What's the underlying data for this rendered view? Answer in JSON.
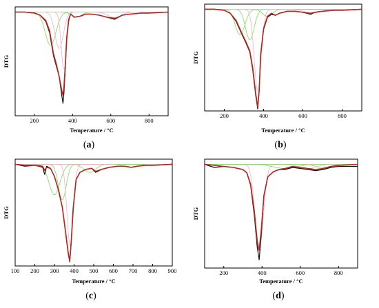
{
  "chart_data": [
    {
      "type": "line",
      "caption": "(a)",
      "xlabel": "Temperature / °C",
      "ylabel": "DTG",
      "xlim": [
        100,
        900
      ],
      "xticks": [
        200,
        400,
        600,
        800
      ],
      "ylim": [
        -1.0,
        0.05
      ],
      "grid": false,
      "series": [
        {
          "role": "experimental",
          "color": "#111111",
          "x": [
            100,
            150,
            200,
            230,
            260,
            280,
            300,
            315,
            330,
            345,
            350,
            355,
            362,
            370,
            380,
            390,
            410,
            440,
            470,
            500,
            540,
            580,
            620,
            640,
            660,
            700,
            760,
            800,
            900
          ],
          "y": [
            0,
            0,
            -0.01,
            -0.03,
            -0.09,
            -0.2,
            -0.42,
            -0.52,
            -0.62,
            -0.82,
            -0.88,
            -0.78,
            -0.55,
            -0.25,
            -0.08,
            -0.02,
            -0.05,
            -0.04,
            -0.02,
            -0.02,
            -0.03,
            -0.05,
            -0.07,
            -0.05,
            -0.03,
            -0.02,
            -0.01,
            -0.01,
            0
          ]
        },
        {
          "role": "fitted",
          "color": "#b5271f",
          "x": [
            100,
            150,
            200,
            230,
            260,
            280,
            300,
            315,
            330,
            345,
            350,
            355,
            362,
            370,
            380,
            390,
            410,
            440,
            470,
            500,
            540,
            580,
            620,
            640,
            660,
            700,
            760,
            800,
            900
          ],
          "y": [
            0,
            0,
            -0.01,
            -0.03,
            -0.08,
            -0.18,
            -0.4,
            -0.5,
            -0.62,
            -0.77,
            -0.8,
            -0.72,
            -0.52,
            -0.24,
            -0.07,
            -0.02,
            -0.05,
            -0.04,
            -0.02,
            -0.02,
            -0.03,
            -0.05,
            -0.06,
            -0.05,
            -0.03,
            -0.02,
            -0.01,
            -0.01,
            0
          ]
        }
      ],
      "components": [
        {
          "color": "#7fd95f",
          "center": 285,
          "width": 28,
          "amp": -0.32
        },
        {
          "color": "#f2b3c4",
          "center": 330,
          "width": 22,
          "amp": -0.35
        },
        {
          "color": "#f2b3c4",
          "center": 355,
          "width": 14,
          "amp": -0.55
        },
        {
          "color": "#7fd95f",
          "center": 420,
          "width": 25,
          "amp": -0.05
        },
        {
          "color": "#f2b3c4",
          "center": 620,
          "width": 35,
          "amp": -0.05
        }
      ]
    },
    {
      "type": "line",
      "caption": "(b)",
      "xlabel": "Temperature / °C",
      "ylabel": "DTG",
      "xlim": [
        100,
        900
      ],
      "xticks": [
        200,
        400,
        600,
        800
      ],
      "ylim": [
        -1.0,
        0.05
      ],
      "grid": false,
      "series": [
        {
          "role": "experimental",
          "color": "#111111",
          "x": [
            100,
            150,
            200,
            230,
            260,
            290,
            310,
            330,
            345,
            360,
            370,
            378,
            385,
            400,
            420,
            440,
            460,
            480,
            520,
            560,
            600,
            640,
            660,
            700,
            760,
            800,
            900
          ],
          "y": [
            0,
            0,
            -0.01,
            -0.04,
            -0.12,
            -0.25,
            -0.33,
            -0.42,
            -0.6,
            -0.85,
            -0.98,
            -0.8,
            -0.45,
            -0.2,
            -0.08,
            -0.05,
            -0.06,
            -0.04,
            -0.02,
            -0.02,
            -0.03,
            -0.05,
            -0.03,
            -0.02,
            -0.01,
            -0.01,
            0
          ]
        },
        {
          "role": "fitted",
          "color": "#b5271f",
          "x": [
            100,
            150,
            200,
            230,
            260,
            290,
            310,
            330,
            345,
            360,
            370,
            378,
            385,
            400,
            420,
            440,
            460,
            480,
            520,
            560,
            600,
            640,
            660,
            700,
            760,
            800,
            900
          ],
          "y": [
            0,
            0,
            -0.01,
            -0.04,
            -0.11,
            -0.24,
            -0.32,
            -0.41,
            -0.58,
            -0.83,
            -0.96,
            -0.79,
            -0.45,
            -0.19,
            -0.07,
            -0.04,
            -0.06,
            -0.04,
            -0.02,
            -0.02,
            -0.03,
            -0.04,
            -0.03,
            -0.02,
            -0.01,
            -0.01,
            0
          ]
        }
      ],
      "components": [
        {
          "color": "#7fd95f",
          "center": 280,
          "width": 25,
          "amp": -0.25
        },
        {
          "color": "#7fd95f",
          "center": 330,
          "width": 22,
          "amp": -0.3
        },
        {
          "color": "#f2b3c4",
          "center": 370,
          "width": 18,
          "amp": -0.8
        },
        {
          "color": "#7fd95f",
          "center": 420,
          "width": 25,
          "amp": -0.07
        },
        {
          "color": "#f2b3c4",
          "center": 650,
          "width": 40,
          "amp": -0.04
        }
      ]
    },
    {
      "type": "line",
      "caption": "(c)",
      "xlabel": "Temperature / °C",
      "ylabel": "DTG",
      "xlim": [
        100,
        900
      ],
      "xticks": [
        100,
        200,
        300,
        400,
        500,
        600,
        700,
        800,
        900
      ],
      "ylim": [
        -1.0,
        0.05
      ],
      "grid": false,
      "series": [
        {
          "role": "experimental",
          "color": "#111111",
          "x": [
            100,
            150,
            200,
            240,
            250,
            260,
            280,
            300,
            320,
            340,
            355,
            370,
            378,
            385,
            395,
            410,
            430,
            460,
            490,
            510,
            540,
            580,
            620,
            660,
            690,
            720,
            760,
            800,
            900
          ],
          "y": [
            0,
            -0.02,
            -0.01,
            -0.03,
            -0.1,
            -0.02,
            -0.04,
            -0.12,
            -0.25,
            -0.42,
            -0.65,
            -0.88,
            -0.96,
            -0.78,
            -0.45,
            -0.15,
            -0.08,
            -0.05,
            -0.04,
            -0.08,
            -0.05,
            -0.03,
            -0.02,
            -0.02,
            -0.03,
            -0.02,
            -0.01,
            -0.01,
            0
          ]
        },
        {
          "role": "fitted",
          "color": "#b5271f",
          "x": [
            100,
            150,
            200,
            240,
            250,
            260,
            280,
            300,
            320,
            340,
            355,
            370,
            378,
            385,
            395,
            410,
            430,
            460,
            490,
            510,
            540,
            580,
            620,
            660,
            690,
            720,
            760,
            800,
            900
          ],
          "y": [
            0,
            -0.01,
            -0.01,
            -0.02,
            -0.06,
            -0.03,
            -0.04,
            -0.12,
            -0.25,
            -0.42,
            -0.64,
            -0.87,
            -0.95,
            -0.78,
            -0.44,
            -0.15,
            -0.08,
            -0.05,
            -0.04,
            -0.07,
            -0.05,
            -0.03,
            -0.02,
            -0.02,
            -0.03,
            -0.02,
            -0.01,
            -0.01,
            0
          ]
        }
      ],
      "components": [
        {
          "color": "#7fd95f",
          "center": 300,
          "width": 28,
          "amp": -0.3
        },
        {
          "color": "#7fd95f",
          "center": 340,
          "width": 20,
          "amp": -0.35
        },
        {
          "color": "#f2b3c4",
          "center": 380,
          "width": 16,
          "amp": -0.8
        },
        {
          "color": "#7fd95f",
          "center": 480,
          "width": 30,
          "amp": -0.08
        },
        {
          "color": "#f2b3c4",
          "center": 690,
          "width": 35,
          "amp": -0.03
        }
      ]
    },
    {
      "type": "line",
      "caption": "(d)",
      "xlabel": "Temperature / °C",
      "ylabel": "DTG",
      "xlim": [
        100,
        900
      ],
      "xticks": [
        200,
        400,
        600,
        800
      ],
      "ylim": [
        -1.0,
        0.05
      ],
      "grid": false,
      "series": [
        {
          "role": "experimental",
          "color": "#111111",
          "x": [
            100,
            150,
            200,
            250,
            300,
            320,
            340,
            360,
            375,
            385,
            395,
            410,
            430,
            460,
            490,
            520,
            560,
            600,
            640,
            680,
            720,
            760,
            800,
            900
          ],
          "y": [
            0,
            -0.03,
            -0.02,
            -0.03,
            -0.05,
            -0.08,
            -0.2,
            -0.5,
            -0.8,
            -0.92,
            -0.7,
            -0.3,
            -0.12,
            -0.07,
            -0.05,
            -0.05,
            -0.03,
            -0.04,
            -0.05,
            -0.06,
            -0.05,
            -0.03,
            -0.02,
            -0.02
          ]
        },
        {
          "role": "fitted",
          "color": "#b5271f",
          "x": [
            100,
            150,
            200,
            250,
            300,
            320,
            340,
            360,
            375,
            385,
            395,
            410,
            430,
            460,
            490,
            520,
            560,
            600,
            640,
            680,
            720,
            760,
            800,
            900
          ],
          "y": [
            0,
            -0.01,
            -0.02,
            -0.03,
            -0.05,
            -0.08,
            -0.19,
            -0.46,
            -0.74,
            -0.83,
            -0.65,
            -0.3,
            -0.12,
            -0.07,
            -0.05,
            -0.04,
            -0.02,
            -0.03,
            -0.04,
            -0.05,
            -0.04,
            -0.02,
            -0.01,
            0
          ]
        }
      ],
      "components": [
        {
          "color": "#f2b3c4",
          "center": 385,
          "width": 22,
          "amp": -0.82
        },
        {
          "color": "#7fd95f",
          "center": 520,
          "width": 60,
          "amp": -0.04
        },
        {
          "color": "#f2b3c4",
          "center": 640,
          "width": 45,
          "amp": -0.04
        },
        {
          "color": "#7fd95f",
          "center": 720,
          "width": 40,
          "amp": -0.03
        }
      ]
    }
  ]
}
